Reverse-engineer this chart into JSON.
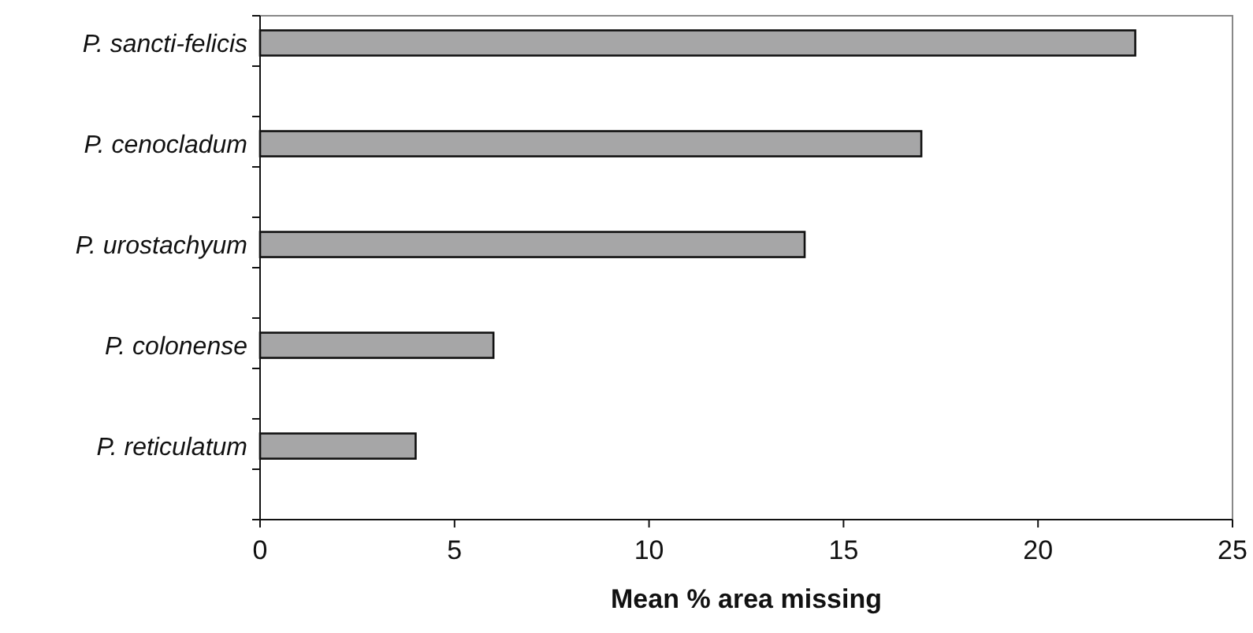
{
  "chart_data": {
    "type": "bar",
    "orientation": "horizontal",
    "xlabel": "Mean % area missing",
    "categories": [
      "P. sancti-felicis",
      "P. cenocladum",
      "P. urostachyum",
      "P. colonense",
      "P. reticulatum"
    ],
    "values": [
      22.5,
      17,
      14,
      6,
      4
    ],
    "color": "#a6a6a7",
    "xlim": [
      0,
      25
    ],
    "xticks": [
      0,
      5,
      10,
      15,
      20,
      25
    ],
    "grid": false
  }
}
